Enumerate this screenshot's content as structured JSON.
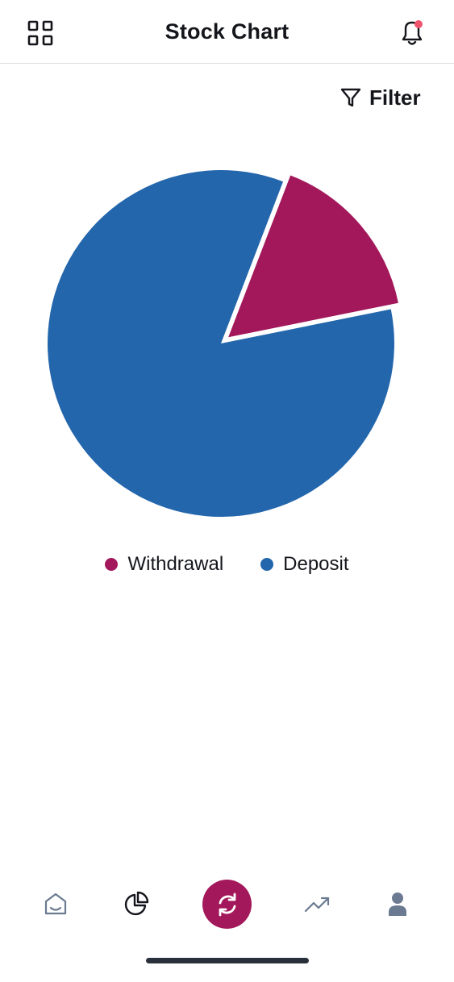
{
  "header": {
    "title": "Stock Chart"
  },
  "filter": {
    "label": "Filter"
  },
  "chart_data": {
    "type": "pie",
    "categories": [
      "Withdrawal",
      "Deposit"
    ],
    "values": [
      16,
      84
    ],
    "colors": [
      "#a3185b",
      "#2366ac"
    ],
    "legend": "bottom"
  },
  "legend": [
    {
      "label": "Withdrawal",
      "color": "#a3185b"
    },
    {
      "label": "Deposit",
      "color": "#2366ac"
    }
  ],
  "nav": [
    "home-icon",
    "pie-chart-icon",
    "refresh-icon",
    "trending-up-icon",
    "profile-icon"
  ],
  "colors": {
    "accent": "#a3185b",
    "primary": "#2366ac",
    "notification": "#f0536e"
  }
}
